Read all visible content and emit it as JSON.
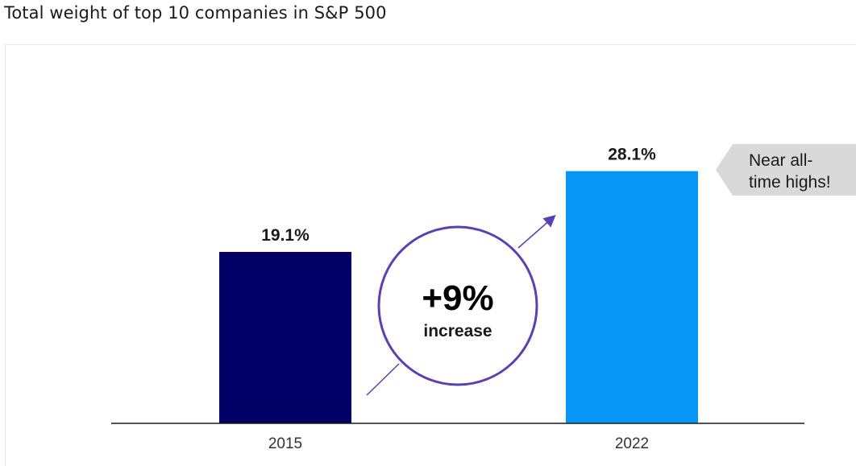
{
  "title": "Total weight of top 10 companies in S&P 500",
  "chart_data": {
    "type": "bar",
    "title": "Total weight of top 10 companies in S&P 500",
    "xlabel": "",
    "ylabel": "",
    "categories": [
      "2015",
      "2022"
    ],
    "values": [
      19.1,
      28.1
    ],
    "value_labels": [
      "19.1%",
      "28.1%"
    ],
    "ylim": [
      0,
      35
    ],
    "grid": false,
    "colors": [
      "#000066",
      "#0696f6"
    ],
    "annotations": {
      "change": {
        "value_label": "+9%",
        "text": "increase",
        "color": "#5b3fb5"
      },
      "callout": {
        "line1": "Near all-",
        "line2": "time highs!",
        "background": "#d9d9d9"
      }
    }
  }
}
